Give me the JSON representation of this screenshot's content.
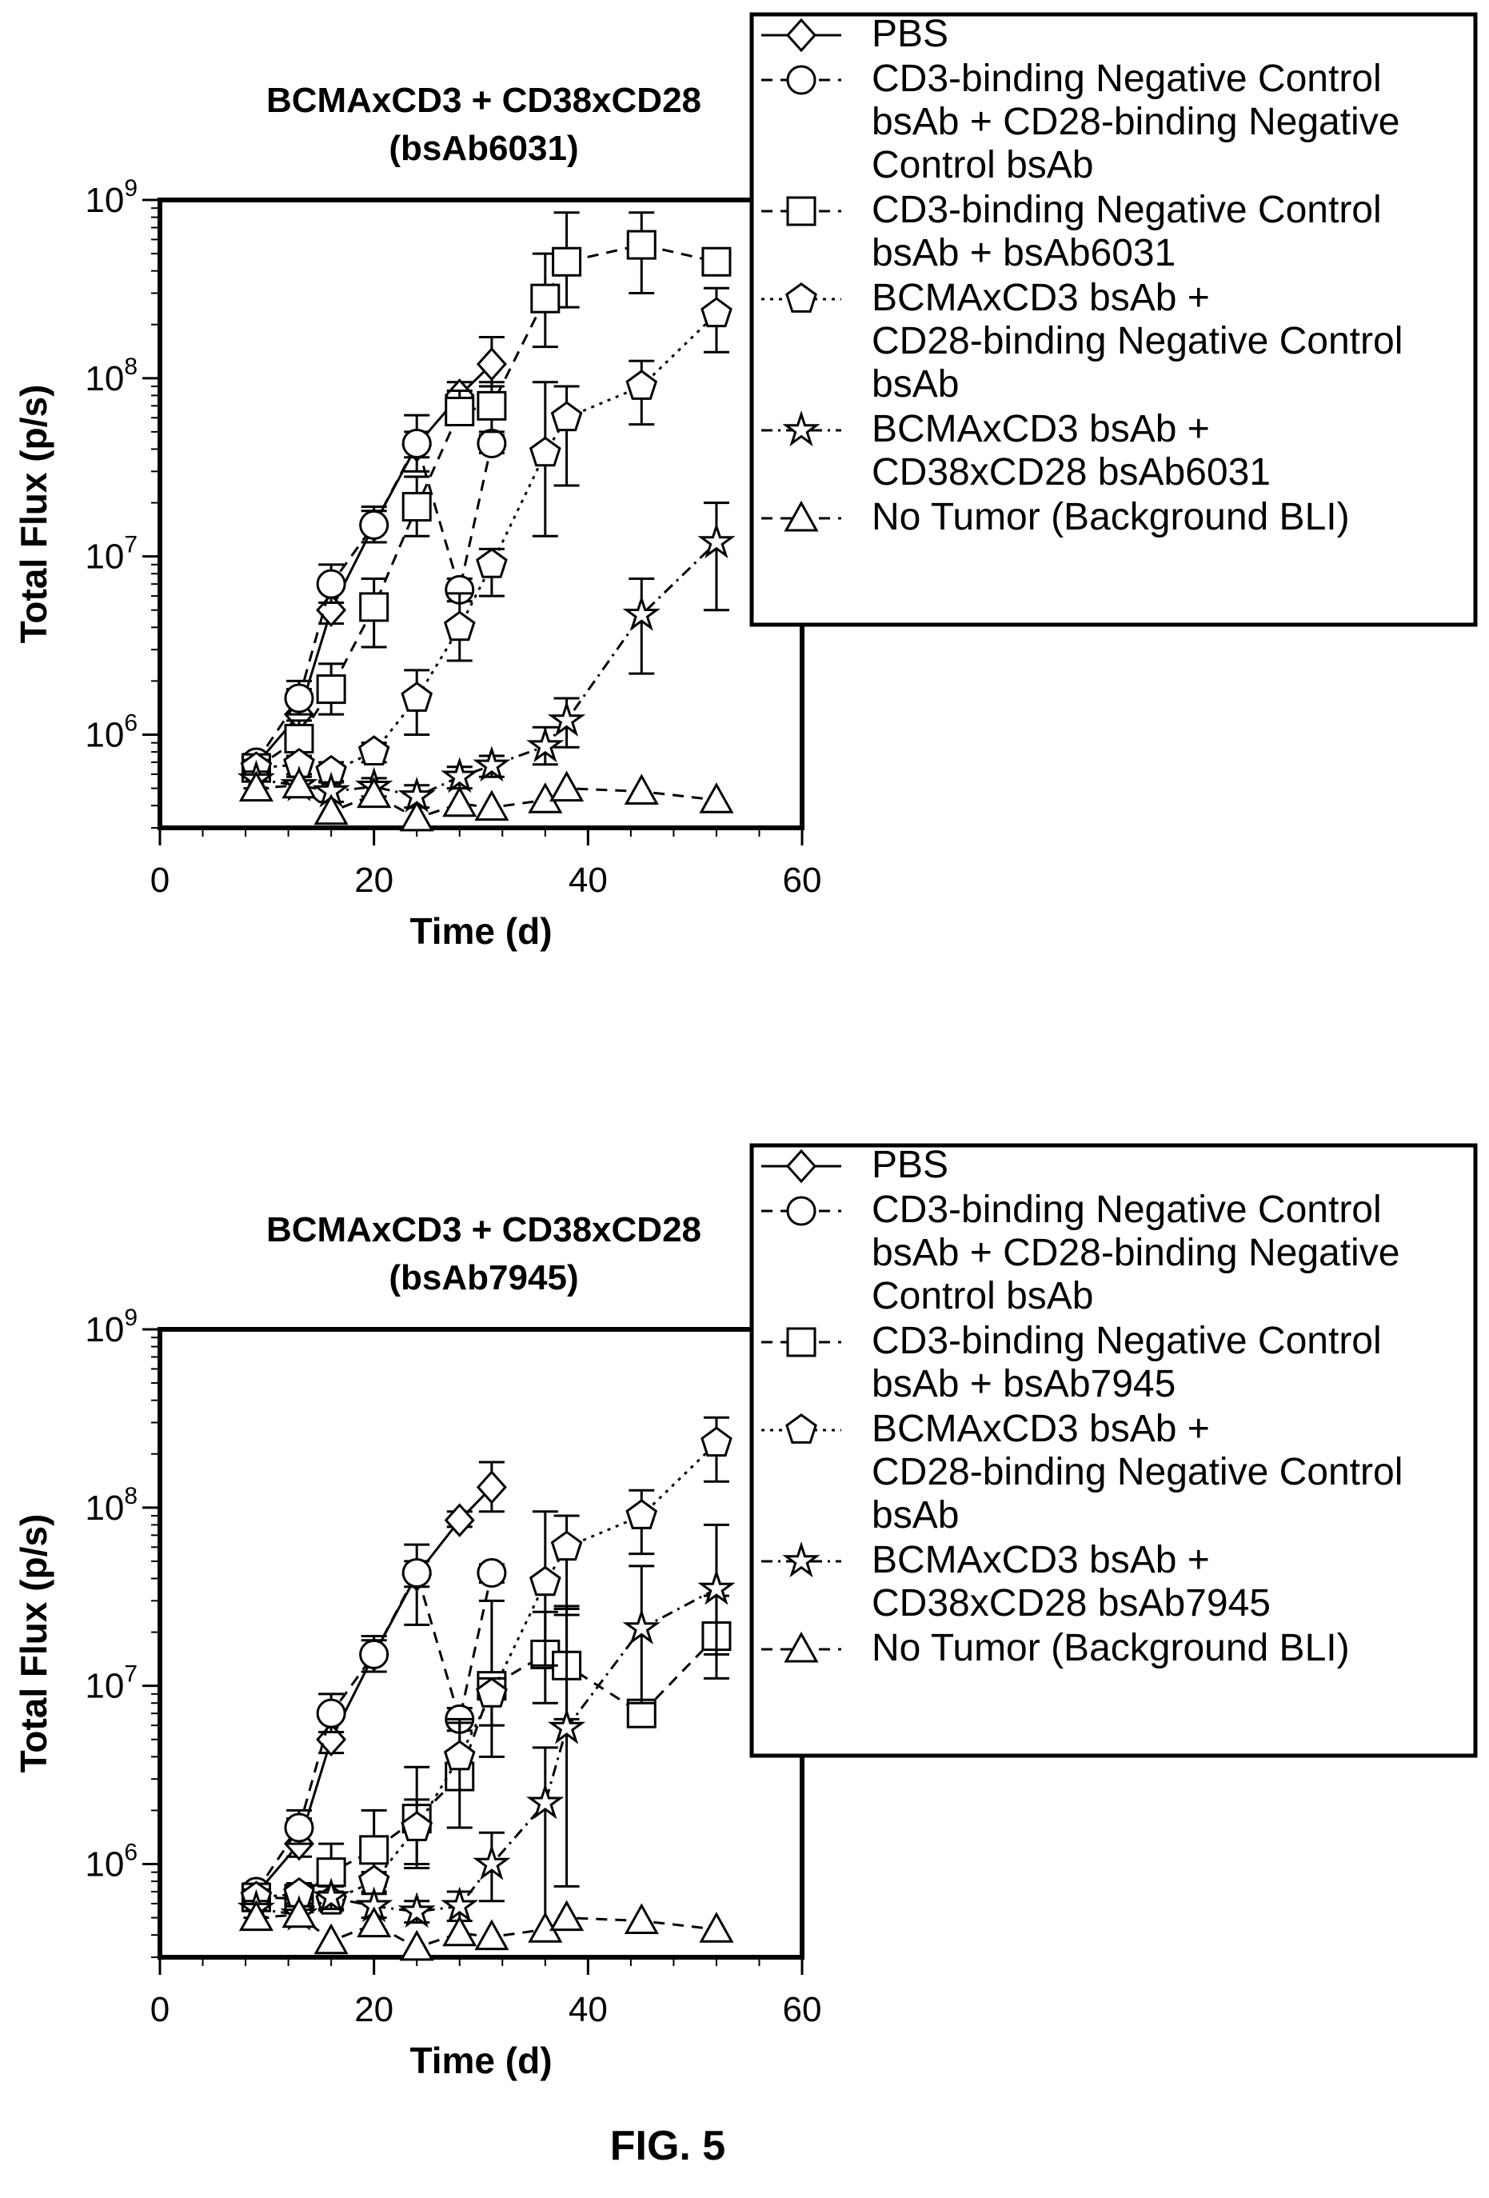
{
  "figure_label": "FIG. 5",
  "chart_data": [
    {
      "type": "line",
      "title": "BCMAxCD3 + CD38xCD28\n(bsAb6031)",
      "xlabel": "Time (d)",
      "ylabel": "Total Flux (p/s)",
      "xlim": [
        0,
        60
      ],
      "ylim": [
        300000,
        1000000000
      ],
      "yscale": "log",
      "xticks": [
        "0",
        "20",
        "40",
        "60"
      ],
      "yticks": [
        {
          "base": "10",
          "exp": "6",
          "value": 1000000
        },
        {
          "base": "10",
          "exp": "7",
          "value": 10000000
        },
        {
          "base": "10",
          "exp": "8",
          "value": 100000000
        },
        {
          "base": "10",
          "exp": "9",
          "value": 1000000000
        }
      ],
      "legend_position": "top-right, outside plot",
      "series": [
        {
          "name": "PBS",
          "marker": "diamond",
          "dash": "solid",
          "x": [
            9,
            13,
            16,
            20,
            24,
            28,
            31
          ],
          "y": [
            680000,
            1300000,
            5000000,
            15000000,
            42000000,
            80000000,
            120000000
          ],
          "err_hi": [
            750000,
            1800000,
            6500000,
            19000000,
            62000000,
            95000000,
            170000000
          ],
          "err_lo": [
            630000,
            1100000,
            4200000,
            12000000,
            30000000,
            72000000,
            90000000
          ]
        },
        {
          "name": "CD3-binding Negative Control\nbsAb + CD28-binding Negative\nControl bsAb",
          "marker": "circle",
          "dash": "dashed",
          "x": [
            9,
            13,
            16,
            20,
            24,
            28,
            31
          ],
          "y": [
            700000,
            1600000,
            7000000,
            15000000,
            43000000,
            6500000,
            43000000
          ],
          "err_hi": [
            780000,
            2000000,
            9000000,
            18000000,
            50000000,
            7500000,
            48000000
          ],
          "err_lo": [
            640000,
            1300000,
            5500000,
            12000000,
            36000000,
            5600000,
            38000000
          ]
        },
        {
          "name": "CD3-binding Negative Control\nbsAb + bsAb6031",
          "marker": "square",
          "dash": "dashed",
          "x": [
            9,
            13,
            16,
            20,
            24,
            28,
            31,
            36,
            38,
            45,
            52
          ],
          "y": [
            650000,
            950000,
            1800000,
            5200000,
            19000000,
            65000000,
            70000000,
            280000000,
            450000000,
            560000000,
            450000000
          ],
          "err_hi": [
            750000,
            1200000,
            2500000,
            7500000,
            28000000,
            85000000,
            95000000,
            500000000,
            850000000,
            850000000,
            480000000
          ],
          "err_lo": [
            580000,
            800000,
            1300000,
            3100000,
            13000000,
            55000000,
            50000000,
            150000000,
            250000000,
            300000000,
            430000000
          ]
        },
        {
          "name": "BCMAxCD3 bsAb +\nCD28-binding Negative Control\nbsAb",
          "marker": "pentagon",
          "dash": "dotted",
          "x": [
            9,
            13,
            16,
            20,
            24,
            28,
            31,
            36,
            38,
            45,
            52
          ],
          "y": [
            650000,
            680000,
            620000,
            800000,
            1600000,
            4000000,
            9000000,
            38000000,
            60000000,
            90000000,
            230000000
          ],
          "err_hi": [
            720000,
            760000,
            700000,
            900000,
            2300000,
            6200000,
            11000000,
            95000000,
            90000000,
            125000000,
            320000000
          ],
          "err_lo": [
            580000,
            600000,
            550000,
            700000,
            1000000,
            2600000,
            6000000,
            13000000,
            25000000,
            55000000,
            140000000
          ]
        },
        {
          "name": "BCMAxCD3 bsAb +\nCD38xCD28 bsAb6031",
          "marker": "star",
          "dash": "dashdot",
          "x": [
            9,
            13,
            16,
            20,
            24,
            28,
            31,
            36,
            38,
            45,
            52
          ],
          "y": [
            560000,
            520000,
            480000,
            510000,
            450000,
            580000,
            670000,
            860000,
            1200000,
            4700000,
            12000000
          ],
          "err_hi": [
            620000,
            580000,
            540000,
            570000,
            520000,
            660000,
            760000,
            1100000,
            1600000,
            7500000,
            20000000
          ],
          "err_lo": [
            500000,
            460000,
            420000,
            450000,
            390000,
            500000,
            580000,
            680000,
            850000,
            2200000,
            5000000
          ]
        },
        {
          "name": "No Tumor (Background BLI)",
          "marker": "triangle",
          "dash": "dashed",
          "x": [
            9,
            13,
            16,
            20,
            24,
            28,
            31,
            36,
            38,
            45,
            52
          ],
          "y": [
            500000,
            520000,
            370000,
            460000,
            340000,
            410000,
            390000,
            430000,
            500000,
            480000,
            430000
          ]
        }
      ]
    },
    {
      "type": "line",
      "title": "BCMAxCD3 + CD38xCD28\n(bsAb7945)",
      "xlabel": "Time (d)",
      "ylabel": "Total Flux (p/s)",
      "xlim": [
        0,
        60
      ],
      "ylim": [
        300000,
        1000000000
      ],
      "yscale": "log",
      "xticks": [
        "0",
        "20",
        "40",
        "60"
      ],
      "yticks": [
        {
          "base": "10",
          "exp": "6",
          "value": 1000000
        },
        {
          "base": "10",
          "exp": "7",
          "value": 10000000
        },
        {
          "base": "10",
          "exp": "8",
          "value": 100000000
        },
        {
          "base": "10",
          "exp": "9",
          "value": 1000000000
        }
      ],
      "legend_position": "top-right, outside plot",
      "series": [
        {
          "name": "PBS",
          "marker": "diamond",
          "dash": "solid",
          "x": [
            9,
            13,
            16,
            20,
            24,
            28,
            31
          ],
          "y": [
            680000,
            1300000,
            5000000,
            15000000,
            42000000,
            85000000,
            130000000
          ],
          "err_hi": [
            750000,
            1800000,
            6500000,
            19000000,
            62000000,
            95000000,
            180000000
          ],
          "err_lo": [
            630000,
            1100000,
            4200000,
            12000000,
            22000000,
            78000000,
            95000000
          ]
        },
        {
          "name": "CD3-binding Negative Control\nbsAb + CD28-binding Negative\nControl bsAb",
          "marker": "circle",
          "dash": "dashed",
          "x": [
            9,
            13,
            16,
            20,
            24,
            28,
            31
          ],
          "y": [
            700000,
            1600000,
            7000000,
            15000000,
            43000000,
            6500000,
            43000000
          ],
          "err_hi": [
            780000,
            2000000,
            9000000,
            18000000,
            50000000,
            7500000,
            48000000
          ],
          "err_lo": [
            640000,
            1300000,
            5500000,
            12000000,
            36000000,
            5600000,
            38000000
          ]
        },
        {
          "name": "CD3-binding Negative Control\nbsAb + bsAb7945",
          "marker": "square",
          "dash": "dashed",
          "x": [
            9,
            13,
            16,
            20,
            24,
            28,
            31,
            36,
            38,
            45,
            52
          ],
          "y": [
            650000,
            640000,
            900000,
            1200000,
            1800000,
            3100000,
            10000000,
            15000000,
            13000000,
            7000000,
            19000000
          ],
          "err_hi": [
            720000,
            780000,
            1300000,
            2000000,
            3500000,
            6500000,
            30000000,
            26000000,
            28000000,
            7300000,
            32000000
          ],
          "err_lo": [
            580000,
            540000,
            650000,
            750000,
            950000,
            1600000,
            4000000,
            8000000,
            6500000,
            6800000,
            11000000
          ]
        },
        {
          "name": "BCMAxCD3 bsAb +\nCD28-binding Negative Control\nbsAb",
          "marker": "pentagon",
          "dash": "dotted",
          "x": [
            9,
            13,
            16,
            20,
            24,
            28,
            31,
            36,
            38,
            45,
            52
          ],
          "y": [
            650000,
            680000,
            620000,
            800000,
            1600000,
            4000000,
            9000000,
            38000000,
            60000000,
            90000000,
            230000000
          ],
          "err_hi": [
            720000,
            760000,
            700000,
            900000,
            2300000,
            6200000,
            11000000,
            95000000,
            90000000,
            125000000,
            320000000
          ],
          "err_lo": [
            580000,
            600000,
            550000,
            700000,
            1000000,
            2600000,
            6000000,
            13000000,
            25000000,
            55000000,
            140000000
          ]
        },
        {
          "name": "BCMAxCD3 bsAb +\nCD38xCD28 bsAb7945",
          "marker": "star",
          "dash": "dashdot",
          "x": [
            9,
            13,
            16,
            20,
            24,
            28,
            31,
            36,
            38,
            45,
            52
          ],
          "y": [
            560000,
            520000,
            650000,
            580000,
            540000,
            580000,
            1000000,
            2200000,
            5800000,
            21000000,
            35000000
          ],
          "err_hi": [
            620000,
            580000,
            750000,
            680000,
            620000,
            700000,
            1500000,
            4500000,
            27000000,
            47000000,
            80000000
          ],
          "err_lo": [
            500000,
            460000,
            560000,
            500000,
            470000,
            480000,
            620000,
            400000,
            750000,
            8000000,
            15000000
          ]
        },
        {
          "name": "No Tumor (Background BLI)",
          "marker": "triangle",
          "dash": "dashed",
          "x": [
            9,
            13,
            16,
            20,
            24,
            28,
            31,
            36,
            38,
            45,
            52
          ],
          "y": [
            500000,
            520000,
            370000,
            460000,
            340000,
            410000,
            390000,
            430000,
            500000,
            480000,
            430000
          ]
        }
      ]
    }
  ]
}
